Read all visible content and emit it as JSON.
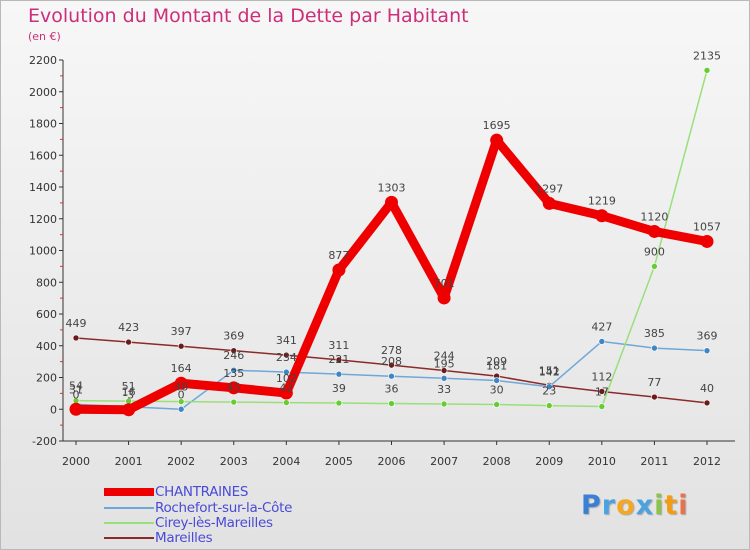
{
  "chart_data": {
    "type": "line",
    "title": "Evolution du Montant de la Dette par Habitant",
    "unit_label": "(en €)",
    "xlabel": "",
    "ylabel": "",
    "x": [
      "2000",
      "2001",
      "2002",
      "2003",
      "2004",
      "2005",
      "2006",
      "2007",
      "2008",
      "2009",
      "2010",
      "2011",
      "2012"
    ],
    "ylim": [
      -200,
      2200
    ],
    "yticks": [
      -200,
      0,
      200,
      400,
      600,
      800,
      1000,
      1200,
      1400,
      1600,
      1800,
      2000,
      2200
    ],
    "grid": false,
    "legend_position": "bottom-left",
    "series": [
      {
        "name": "CHANTRAINES",
        "color": "#ee0000",
        "point_color": "#ee0000",
        "emphasis": "bold",
        "values": [
          0,
          -3,
          164,
          135,
          102,
          877,
          1303,
          701,
          1695,
          1297,
          1219,
          1120,
          1057
        ],
        "labels": [
          "0",
          "-3",
          "164",
          "135",
          "102",
          "877",
          "1303",
          "701",
          "1695",
          "1297",
          "1219",
          "1120",
          "1057"
        ]
      },
      {
        "name": "Rochefort-sur-la-Côte",
        "color": "#6fa7d8",
        "point_color": "#3d85c6",
        "emphasis": "normal",
        "values": [
          31,
          16,
          0,
          246,
          234,
          221,
          208,
          195,
          181,
          142,
          427,
          385,
          369
        ],
        "labels": [
          "31",
          "16",
          "0",
          "246",
          "234",
          "221",
          "208",
          "195",
          "181",
          "142",
          "427",
          "385",
          "369"
        ]
      },
      {
        "name": "Cirey-lès-Mareilles",
        "color": "#99e07a",
        "point_color": "#66cc33",
        "emphasis": "normal",
        "values": [
          54,
          51,
          48,
          45,
          42,
          39,
          36,
          33,
          30,
          23,
          17,
          900,
          2135
        ],
        "labels": [
          "54",
          "51",
          "48",
          "45",
          "42",
          "39",
          "36",
          "33",
          "30",
          "23",
          "17",
          "900",
          "2135"
        ]
      },
      {
        "name": "Mareilles",
        "color": "#8b2a2a",
        "point_color": "#6b1b1b",
        "emphasis": "normal",
        "values": [
          449,
          423,
          397,
          369,
          341,
          311,
          278,
          244,
          209,
          151,
          112,
          77,
          40
        ],
        "labels": [
          "449",
          "423",
          "397",
          "369",
          "341",
          "311",
          "278",
          "244",
          "209",
          "151",
          "112",
          "77",
          "40"
        ]
      }
    ]
  },
  "branding": {
    "letters": [
      "P",
      "r",
      "o",
      "x",
      "i",
      "t",
      "i"
    ],
    "letter_colors": [
      "#3a7fd5",
      "#4aa3e0",
      "#f5a623",
      "#4aa3e0",
      "#8bc34a",
      "#f39c12",
      "#e8734a"
    ]
  }
}
